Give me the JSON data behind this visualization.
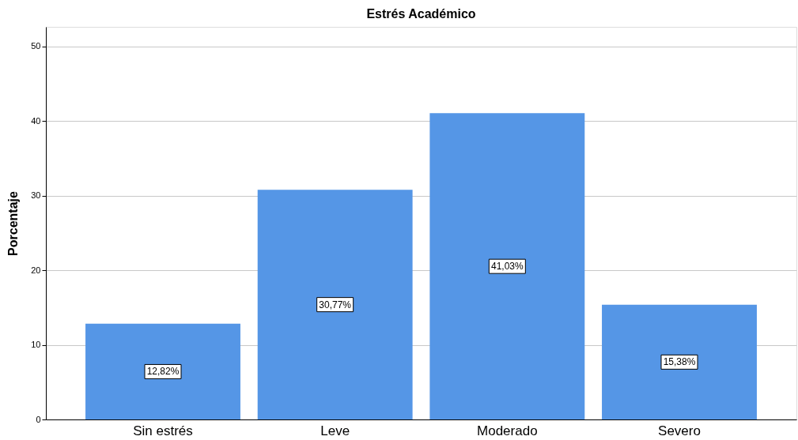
{
  "chart_data": {
    "type": "bar",
    "title": "Estrés Académico",
    "ylabel": "Porcentaje",
    "categories": [
      "Sin estrés",
      "Leve",
      "Moderado",
      "Severo"
    ],
    "values": [
      12.82,
      30.77,
      41.03,
      15.38
    ],
    "value_labels": [
      "12,82%",
      "30,77%",
      "41,03%",
      "15,38%"
    ],
    "color": "#5596e6",
    "ylim": [
      0,
      52.6
    ],
    "yticks": [
      0,
      10,
      20,
      30,
      40,
      50
    ],
    "grid": "y"
  }
}
